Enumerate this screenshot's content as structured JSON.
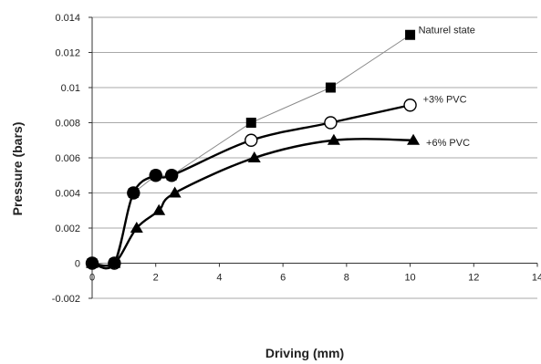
{
  "chart_data": {
    "type": "line",
    "xlabel": "Driving (mm)",
    "ylabel": "Pressure (bars)",
    "xlim": [
      0,
      14
    ],
    "ylim": [
      -0.002,
      0.014
    ],
    "x_ticks": [
      "0",
      "2",
      "4",
      "6",
      "8",
      "10",
      "12",
      "14"
    ],
    "y_ticks": [
      "-0.002",
      "0",
      "0.002",
      "0.004",
      "0.006",
      "0.008",
      "0.01",
      "0.012",
      "0.014"
    ],
    "grid": "horizontal",
    "legend": "inline labels at line ends",
    "series": [
      {
        "name": "Naturel state",
        "marker": "square",
        "color": "#888888",
        "x": [
          0,
          0.7,
          1.3,
          2.0,
          2.5,
          5.0,
          7.5,
          10.0
        ],
        "y": [
          0,
          0,
          0.004,
          0.005,
          0.005,
          0.008,
          0.01,
          0.013
        ]
      },
      {
        "name": "+3% PVC",
        "marker": "circle-open",
        "color": "#000000",
        "x": [
          0,
          0.7,
          1.3,
          2.0,
          2.5,
          5.0,
          7.5,
          10.0
        ],
        "y": [
          0,
          0,
          0.004,
          0.005,
          0.005,
          0.007,
          0.008,
          0.009
        ]
      },
      {
        "name": "+6% PVC",
        "marker": "triangle",
        "color": "#000000",
        "x": [
          0,
          0.7,
          1.4,
          2.1,
          2.6,
          5.1,
          7.6,
          10.1
        ],
        "y": [
          0,
          0,
          0.002,
          0.003,
          0.004,
          0.006,
          0.007,
          0.007
        ]
      }
    ]
  }
}
